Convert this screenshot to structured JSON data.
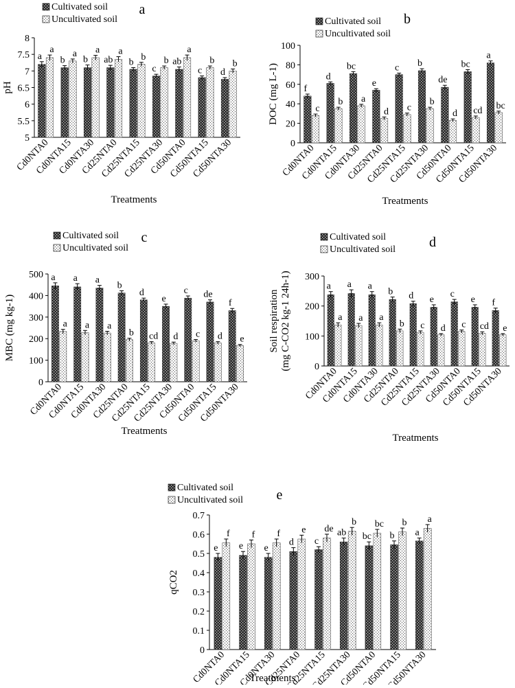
{
  "chart_data": [
    {
      "type": "bar",
      "panel_letter": "a",
      "categories": [
        "Cd0NTA0",
        "Cd0NTA15",
        "Cd0NTA30",
        "Cd25NTA0",
        "Cd25NTA15",
        "Cd25NTA30",
        "Cd50NTA0",
        "Cd50NTA15",
        "Cd50NTA30"
      ],
      "series": [
        {
          "name": "Cultivated soil",
          "values": [
            7.2,
            7.1,
            7.1,
            7.1,
            7.05,
            6.85,
            7.05,
            6.8,
            6.75
          ],
          "errors": [
            0.08,
            0.06,
            0.08,
            0.07,
            0.05,
            0.05,
            0.07,
            0.05,
            0.05
          ],
          "letters": [
            "a",
            "b",
            "b",
            "ab",
            "b",
            "c",
            "ab",
            "c",
            "d"
          ]
        },
        {
          "name": "Uncultivated soil",
          "values": [
            7.4,
            7.3,
            7.4,
            7.35,
            7.2,
            7.1,
            7.4,
            7.1,
            7.0
          ],
          "errors": [
            0.08,
            0.06,
            0.07,
            0.08,
            0.06,
            0.05,
            0.08,
            0.05,
            0.06
          ],
          "letters": [
            "a",
            "a",
            "a",
            "a",
            "b",
            "b",
            "a",
            "b",
            "b"
          ]
        }
      ],
      "xlabel": "Treatments",
      "ylabel": "pH",
      "ylim": [
        5,
        8
      ],
      "yticks": [
        "5",
        "5.5",
        "6",
        "6.5",
        "7",
        "7.5",
        "8"
      ],
      "legend": "top-left"
    },
    {
      "type": "bar",
      "panel_letter": "b",
      "categories": [
        "Cd0NTA0",
        "Cd0NTA15",
        "Cd0NTA30",
        "Cd25NTA0",
        "Cd25NTA15",
        "Cd25NTA30",
        "Cd50NTA0",
        "Cd50NTA15",
        "Cd50NTA30"
      ],
      "series": [
        {
          "name": "Cultivated soil",
          "values": [
            48,
            61,
            71,
            54,
            70,
            74,
            57,
            73,
            82
          ],
          "errors": [
            2,
            1.5,
            2,
            1.5,
            1.5,
            2,
            2,
            2,
            2
          ],
          "letters": [
            "f",
            "d",
            "bc",
            "e",
            "c",
            "b",
            "de",
            "bc",
            "a"
          ]
        },
        {
          "name": "Uncultivated soil",
          "values": [
            28,
            35,
            38,
            25,
            29,
            35,
            23,
            26,
            31
          ],
          "errors": [
            1.5,
            1.5,
            1.5,
            1.5,
            1.5,
            1.5,
            1.5,
            1.5,
            1.5
          ],
          "letters": [
            "c",
            "b",
            "a",
            "d",
            "c",
            "b",
            "d",
            "cd",
            "bc"
          ]
        }
      ],
      "xlabel": "Treatments",
      "ylabel": "DOC (mg L-1)",
      "ylim": [
        0,
        100
      ],
      "yticks": [
        "0",
        "20",
        "40",
        "60",
        "80",
        "100"
      ],
      "legend": "top-left"
    },
    {
      "type": "bar",
      "panel_letter": "c",
      "categories": [
        "Cd0NTA0",
        "Cd0NTA15",
        "Cd0NTA30",
        "Cd25NTA0",
        "Cd25NTA15",
        "Cd25NTA30",
        "Cd50NTA0",
        "Cd50NTA15",
        "Cd50NTA30"
      ],
      "series": [
        {
          "name": "Cultivated soil",
          "values": [
            445,
            440,
            435,
            412,
            380,
            350,
            388,
            370,
            330
          ],
          "errors": [
            14,
            15,
            12,
            10,
            8,
            10,
            10,
            10,
            10
          ],
          "letters": [
            "a",
            "a",
            "a",
            "b",
            "d",
            "e",
            "c",
            "de",
            "f"
          ]
        },
        {
          "name": "Uncultivated soil",
          "values": [
            233,
            228,
            226,
            195,
            180,
            178,
            190,
            180,
            168
          ],
          "errors": [
            10,
            10,
            8,
            7,
            6,
            6,
            6,
            6,
            5
          ],
          "letters": [
            "a",
            "a",
            "a",
            "b",
            "cd",
            "d",
            "c",
            "d",
            "e"
          ]
        }
      ],
      "xlabel": "Treatments",
      "ylabel": "MBC (mg kg-1)",
      "ylim": [
        0,
        500
      ],
      "yticks": [
        "0",
        "100",
        "200",
        "300",
        "400",
        "500"
      ],
      "legend": "top-left"
    },
    {
      "type": "bar",
      "panel_letter": "d",
      "categories": [
        "Cd0NTA0",
        "Cd0NTA15",
        "Cd0NTA30",
        "Cd25NTA0",
        "Cd25NTA15",
        "Cd25NTA30",
        "Cd50NTA0",
        "Cd50NTA15",
        "Cd50NTA30"
      ],
      "series": [
        {
          "name": "Cultivated soil",
          "values": [
            238,
            242,
            238,
            222,
            208,
            196,
            214,
            196,
            185
          ],
          "errors": [
            10,
            12,
            10,
            8,
            8,
            8,
            8,
            8,
            8
          ],
          "letters": [
            "a",
            "a",
            "a",
            "b",
            "d",
            "e",
            "c",
            "e",
            "f"
          ]
        },
        {
          "name": "Uncultivated soil",
          "values": [
            137,
            135,
            137,
            117,
            112,
            104,
            115,
            109,
            104
          ],
          "errors": [
            7,
            7,
            7,
            6,
            5,
            4,
            5,
            5,
            4
          ],
          "letters": [
            "a",
            "a",
            "a",
            "b",
            "c",
            "d",
            "c",
            "cd",
            "e"
          ]
        }
      ],
      "xlabel": "Treatments",
      "ylabel_line1": "Soil respiration",
      "ylabel_line2": "(mg C-CO2 kg-1 24h-1)",
      "ylim": [
        0,
        300
      ],
      "yticks": [
        "0",
        "100",
        "200",
        "300"
      ],
      "legend": "top-left"
    },
    {
      "type": "bar",
      "panel_letter": "e",
      "categories": [
        "Cd0NTA0",
        "Cd0NTA15",
        "Cd0NTA30",
        "Cd25NTA0",
        "Cd25NTA15",
        "Cd25NTA30",
        "Cd50NTA0",
        "Cd50NTA15",
        "Cd50NTA30"
      ],
      "series": [
        {
          "name": "Cultivated soil",
          "values": [
            0.48,
            0.49,
            0.48,
            0.51,
            0.52,
            0.56,
            0.54,
            0.545,
            0.565
          ],
          "errors": [
            0.02,
            0.02,
            0.02,
            0.02,
            0.015,
            0.02,
            0.02,
            0.02,
            0.015
          ],
          "letters": [
            "e",
            "e",
            "e",
            "d",
            "c",
            "ab",
            "bc",
            "b",
            "a"
          ]
        },
        {
          "name": "Uncultivated soil",
          "values": [
            0.555,
            0.55,
            0.555,
            0.575,
            0.58,
            0.615,
            0.605,
            0.612,
            0.63
          ],
          "errors": [
            0.02,
            0.02,
            0.02,
            0.02,
            0.02,
            0.02,
            0.02,
            0.02,
            0.02
          ],
          "letters": [
            "f",
            "f",
            "f",
            "e",
            "de",
            "b",
            "bc",
            "b",
            "a"
          ]
        }
      ],
      "xlabel": "Treatments",
      "ylabel": "qCO2",
      "ylim": [
        0,
        0.7
      ],
      "yticks": [
        "0",
        "0.1",
        "0.2",
        "0.3",
        "0.4",
        "0.5",
        "0.6",
        "0.7"
      ],
      "legend": "top-left"
    }
  ]
}
